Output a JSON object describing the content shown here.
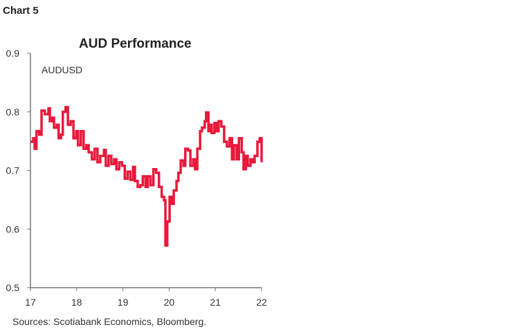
{
  "header": {
    "chart_label": "Chart 5"
  },
  "footer": {
    "sources": "Sources: Scotiabank Economics, Bloomberg."
  },
  "chart_data": {
    "type": "line",
    "title": "AUD Performance",
    "series_label": "AUDUSD",
    "xlabel": "",
    "ylabel": "",
    "xlim": [
      17,
      22
    ],
    "ylim": [
      0.5,
      0.9
    ],
    "xticks": [
      "17",
      "18",
      "19",
      "20",
      "21",
      "22"
    ],
    "yticks": [
      "0.5",
      "0.6",
      "0.7",
      "0.8",
      "0.9"
    ],
    "grid": false,
    "color": "#e8193c",
    "step": true,
    "series": [
      {
        "x": [
          17.0,
          17.06,
          17.09,
          17.13,
          17.19,
          17.24,
          17.31,
          17.39,
          17.42,
          17.46,
          17.51,
          17.57,
          17.61,
          17.66,
          17.7,
          17.76,
          17.81,
          17.87,
          17.93,
          17.99,
          18.03,
          18.09,
          18.15,
          18.21,
          18.26,
          18.33,
          18.39,
          18.45,
          18.51,
          18.59,
          18.63,
          18.69,
          18.75,
          18.81,
          18.86,
          18.92,
          18.98,
          19.04,
          19.1,
          19.16,
          19.22,
          19.26,
          19.32,
          19.38,
          19.43,
          19.49,
          19.54,
          19.6,
          19.66,
          19.72,
          19.78,
          19.84,
          19.89,
          19.92,
          19.96,
          20.01,
          20.05,
          20.1,
          20.16,
          20.2,
          20.25,
          20.31,
          20.35,
          20.41,
          20.46,
          20.52,
          20.56,
          20.61,
          20.67,
          20.71,
          20.77,
          20.8,
          20.85,
          20.88,
          20.92,
          20.98,
          21.03,
          21.07,
          21.13,
          21.19,
          21.25,
          21.31,
          21.36,
          21.4,
          21.46,
          21.51,
          21.57,
          21.61,
          21.66,
          21.7,
          21.76,
          21.81,
          21.85,
          21.91,
          21.96,
          22.0
        ],
        "y": [
          0.749,
          0.755,
          0.737,
          0.767,
          0.761,
          0.802,
          0.796,
          0.806,
          0.784,
          0.79,
          0.773,
          0.778,
          0.755,
          0.761,
          0.8,
          0.808,
          0.778,
          0.784,
          0.755,
          0.767,
          0.743,
          0.767,
          0.737,
          0.743,
          0.731,
          0.719,
          0.737,
          0.714,
          0.725,
          0.735,
          0.708,
          0.725,
          0.711,
          0.719,
          0.702,
          0.714,
          0.708,
          0.686,
          0.698,
          0.684,
          0.706,
          0.682,
          0.672,
          0.675,
          0.69,
          0.672,
          0.69,
          0.675,
          0.702,
          0.696,
          0.672,
          0.655,
          0.649,
          0.572,
          0.613,
          0.655,
          0.643,
          0.666,
          0.682,
          0.696,
          0.717,
          0.708,
          0.737,
          0.734,
          0.708,
          0.719,
          0.702,
          0.737,
          0.767,
          0.773,
          0.784,
          0.799,
          0.767,
          0.778,
          0.764,
          0.781,
          0.767,
          0.784,
          0.775,
          0.749,
          0.741,
          0.755,
          0.719,
          0.743,
          0.719,
          0.755,
          0.731,
          0.702,
          0.725,
          0.708,
          0.719,
          0.714,
          0.725,
          0.749,
          0.755,
          0.714
        ]
      }
    ]
  }
}
